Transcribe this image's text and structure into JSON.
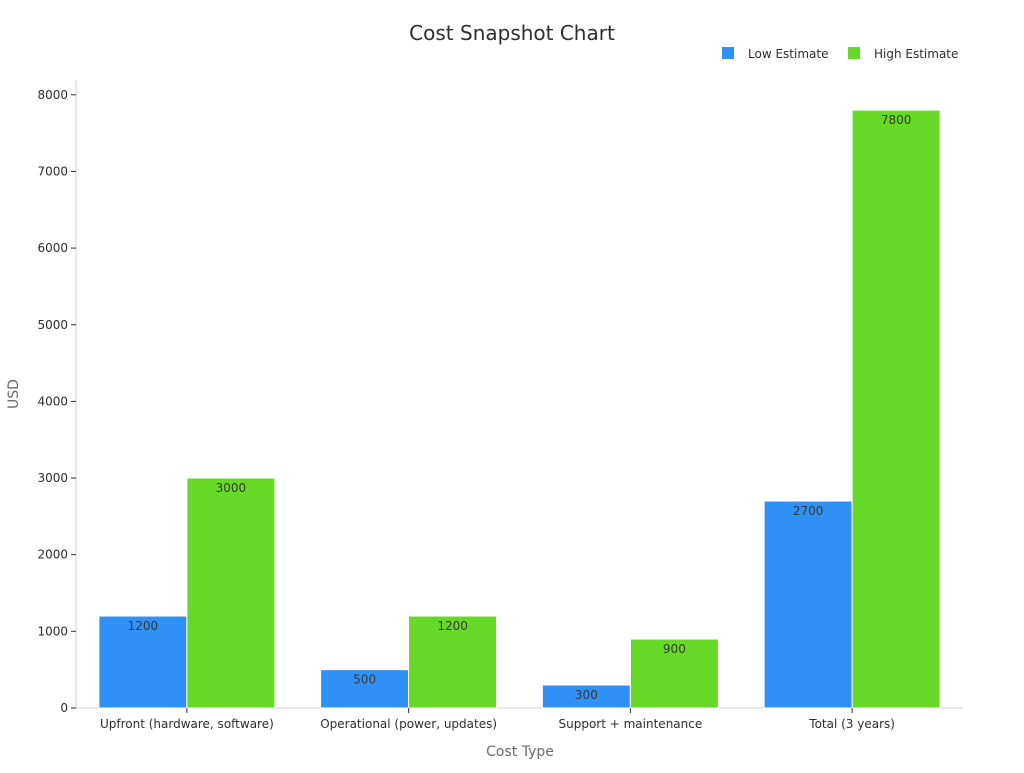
{
  "chart_data": {
    "type": "bar",
    "title": "Cost Snapshot Chart",
    "xlabel": "Cost Type",
    "ylabel": "USD",
    "categories": [
      "Upfront (hardware, software)",
      "Operational (power, updates)",
      "Support + maintenance",
      "Total (3 years)"
    ],
    "series": [
      {
        "name": "Low Estimate",
        "values": [
          1200,
          500,
          300,
          2700
        ],
        "color": "#2f90f5"
      },
      {
        "name": "High Estimate",
        "values": [
          3000,
          1200,
          900,
          7800
        ],
        "color": "#66d926"
      }
    ],
    "ylim": [
      0,
      8200
    ],
    "yticks": [
      0,
      1000,
      2000,
      3000,
      4000,
      5000,
      6000,
      7000,
      8000
    ],
    "grid": false,
    "legend_position": "top-right"
  }
}
